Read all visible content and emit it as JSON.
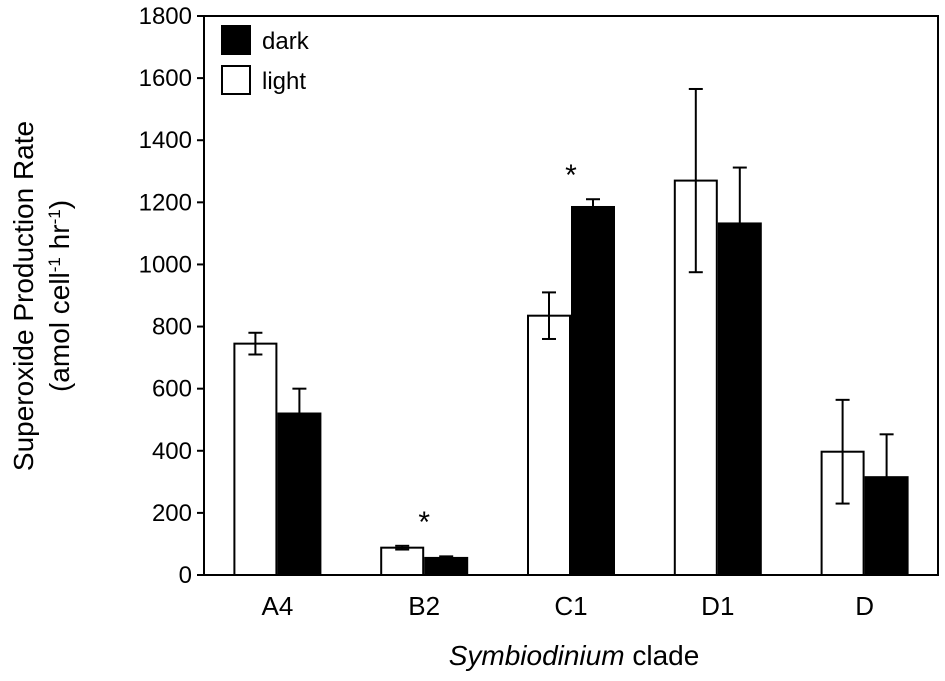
{
  "chart_data": {
    "type": "bar",
    "categories": [
      "A4",
      "B2",
      "C1",
      "D1",
      "D"
    ],
    "series": [
      {
        "name": "light",
        "color": "#ffffff",
        "values": [
          745,
          88,
          835,
          1270,
          397
        ],
        "errors": [
          35,
          6,
          75,
          295,
          167
        ]
      },
      {
        "name": "dark",
        "color": "#000000",
        "values": [
          520,
          55,
          1185,
          1132,
          315
        ],
        "errors": [
          80,
          5,
          25,
          180,
          138
        ]
      }
    ],
    "xlabel_italic": "Symbiodinium",
    "xlabel_rest": " clade",
    "ylabel_line1": "Superoxide Production Rate",
    "ylabel_line2": {
      "open": "(amol cell",
      "sup1": "-1",
      "mid": " hr",
      "sup2": "-1",
      "close": ")"
    },
    "ylim": [
      0,
      1800
    ],
    "yticks": [
      0,
      200,
      400,
      600,
      800,
      1000,
      1200,
      1400,
      1600,
      1800
    ],
    "legend_position": "top-left",
    "legend_order": [
      "dark",
      "light"
    ],
    "annotations": [
      {
        "category": "B2",
        "text": "*"
      },
      {
        "category": "C1",
        "text": "*"
      }
    ],
    "grid": false
  }
}
